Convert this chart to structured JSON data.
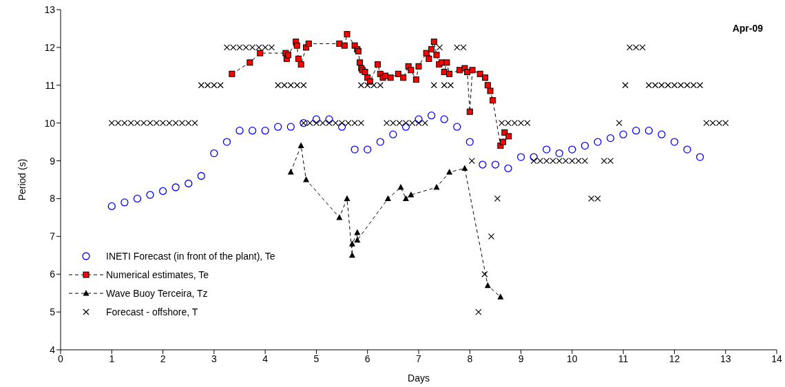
{
  "chart_data": {
    "type": "scatter",
    "xlabel": "Days",
    "ylabel": "Period (s)",
    "annotations": [
      "Apr-09"
    ],
    "xlim": [
      0,
      14
    ],
    "ylim": [
      4,
      13
    ],
    "xticks": [
      0,
      1,
      2,
      3,
      4,
      5,
      6,
      7,
      8,
      9,
      10,
      11,
      12,
      13,
      14
    ],
    "yticks": [
      4,
      5,
      6,
      7,
      8,
      9,
      10,
      11,
      12,
      13
    ],
    "grid": false,
    "legend": "bottom left",
    "series": [
      {
        "name": "INETI Forecast (in front of the plant), Te",
        "type": "scatter",
        "marker": "circle",
        "color": "#0000ff",
        "x": [
          1,
          1.25,
          1.5,
          1.75,
          2,
          2.25,
          2.5,
          2.75,
          3,
          3.25,
          3.5,
          3.75,
          4,
          4.25,
          4.5,
          4.75,
          5,
          5.25,
          5.5,
          5.75,
          6,
          6.25,
          6.5,
          6.75,
          7,
          7.25,
          7.5,
          7.75,
          8,
          8.25,
          8.5,
          8.75,
          9,
          9.25,
          9.5,
          9.75,
          10,
          10.25,
          10.5,
          10.75,
          11,
          11.25,
          11.5,
          11.75,
          12,
          12.25,
          12.5
        ],
        "values": [
          7.8,
          7.9,
          8.0,
          8.1,
          8.2,
          8.3,
          8.4,
          8.6,
          9.2,
          9.5,
          9.8,
          9.8,
          9.8,
          9.9,
          9.9,
          10.0,
          10.1,
          10.1,
          9.9,
          9.3,
          9.3,
          9.5,
          9.7,
          9.9,
          10.1,
          10.2,
          10.1,
          9.9,
          9.5,
          8.9,
          8.9,
          8.8,
          9.1,
          9.1,
          9.3,
          9.2,
          9.3,
          9.4,
          9.5,
          9.6,
          9.7,
          9.8,
          9.8,
          9.7,
          9.5,
          9.3,
          9.1
        ]
      },
      {
        "name": "Numerical estimates, Te",
        "type": "line",
        "marker": "square",
        "line_style": "dashed",
        "color": "#ff0000",
        "x": [
          3.35,
          3.7,
          3.9,
          4.4,
          4.42,
          4.45,
          4.6,
          4.62,
          4.65,
          4.7,
          4.8,
          4.85,
          5.45,
          5.55,
          5.6,
          5.75,
          5.8,
          5.82,
          5.85,
          5.88,
          5.9,
          5.95,
          6.0,
          6.05,
          6.2,
          6.25,
          6.3,
          6.35,
          6.45,
          6.6,
          6.7,
          6.8,
          6.85,
          6.95,
          7.0,
          7.15,
          7.2,
          7.25,
          7.3,
          7.35,
          7.4,
          7.45,
          7.5,
          7.55,
          7.6,
          7.8,
          7.9,
          7.95,
          8.0,
          8.05,
          8.2,
          8.3,
          8.35,
          8.4,
          8.45,
          8.6,
          8.65,
          8.68,
          8.76
        ],
        "values": [
          11.3,
          11.6,
          11.85,
          11.85,
          11.7,
          11.8,
          12.15,
          12.05,
          11.7,
          11.55,
          12.0,
          12.1,
          12.1,
          12.05,
          12.35,
          12.05,
          11.95,
          11.9,
          11.6,
          11.45,
          11.4,
          11.35,
          11.2,
          11.1,
          11.55,
          11.3,
          11.2,
          11.25,
          11.2,
          11.3,
          11.2,
          11.5,
          11.4,
          11.15,
          11.5,
          11.85,
          11.7,
          11.95,
          12.15,
          11.8,
          11.55,
          11.6,
          11.35,
          11.6,
          11.3,
          11.4,
          11.45,
          11.35,
          10.3,
          11.4,
          11.3,
          11.2,
          11.0,
          10.85,
          10.6,
          9.4,
          9.5,
          9.75,
          9.65
        ]
      },
      {
        "name": "Wave Buoy Terceira, Tz",
        "type": "line",
        "marker": "triangle",
        "line_style": "dashed",
        "color": "#000000",
        "x": [
          4.5,
          4.7,
          4.8,
          5.45,
          5.6,
          5.7,
          5.7,
          5.8,
          5.8,
          6.4,
          6.65,
          6.75,
          6.85,
          7.35,
          7.6,
          7.9,
          8.35,
          8.6
        ],
        "values": [
          8.7,
          9.4,
          8.5,
          7.5,
          8.0,
          6.5,
          6.8,
          7.1,
          6.9,
          8.0,
          8.3,
          8.0,
          8.1,
          8.3,
          8.7,
          8.8,
          5.7,
          5.4
        ]
      },
      {
        "name": "Forecast - offshore, T",
        "type": "scatter",
        "marker": "cross",
        "color": "#000000",
        "x": [
          1,
          1.125,
          1.25,
          1.375,
          1.5,
          1.625,
          1.75,
          1.875,
          2,
          2.125,
          2.25,
          2.375,
          2.5,
          2.625,
          2.75,
          2.875,
          3,
          3.125,
          3.25,
          3.375,
          3.5,
          3.625,
          3.75,
          3.875,
          4,
          4.125,
          4.25,
          4.375,
          4.5,
          4.625,
          4.75,
          4.75,
          4.875,
          5,
          5.125,
          5.25,
          5.375,
          5.5,
          5.625,
          5.75,
          5.875,
          5.875,
          6,
          6.125,
          6.25,
          6.375,
          6.5,
          6.625,
          6.75,
          6.875,
          7,
          7.125,
          7.3,
          7.41,
          7.5,
          7.625,
          7.75,
          7.875,
          8.04,
          8.17,
          8.29,
          8.42,
          8.54,
          8.625,
          8.75,
          8.875,
          9,
          9.125,
          9.25,
          9.375,
          9.5,
          9.625,
          9.75,
          9.875,
          10,
          10.125,
          10.25,
          10.375,
          10.5,
          10.625,
          10.75,
          10.92,
          11.04,
          11.125,
          11.25,
          11.375,
          11.5,
          11.625,
          11.75,
          11.875,
          12,
          12.125,
          12.25,
          12.375,
          12.5,
          12.625,
          12.75,
          12.875,
          13
        ],
        "values": [
          10,
          10,
          10,
          10,
          10,
          10,
          10,
          10,
          10,
          10,
          10,
          10,
          10,
          10,
          11,
          11,
          11,
          11,
          12,
          12,
          12,
          12,
          12,
          12,
          12,
          12,
          11,
          11,
          11,
          11,
          11,
          10,
          10,
          10,
          10,
          10,
          10,
          10,
          10,
          10,
          10,
          11,
          11,
          11,
          11,
          10,
          10,
          10,
          10,
          10,
          10,
          10,
          11,
          12,
          11,
          11,
          12,
          12,
          9,
          5,
          6,
          7,
          8,
          10,
          10,
          10,
          10,
          10,
          9,
          9,
          9,
          9,
          9,
          9,
          9,
          9,
          9,
          8,
          8,
          9,
          9,
          10,
          11,
          12,
          12,
          12,
          11,
          11,
          11,
          11,
          11,
          11,
          11,
          11,
          11,
          10,
          10,
          10,
          10
        ]
      }
    ]
  }
}
